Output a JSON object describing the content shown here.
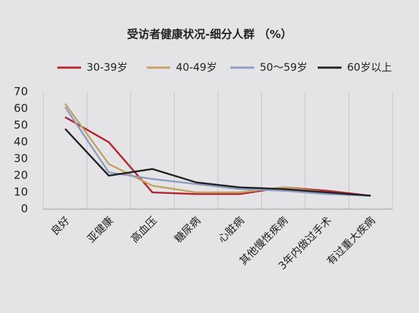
{
  "chart_data": {
    "type": "line",
    "title": "受访者健康状况-细分人群 （%）",
    "categories": [
      "良好",
      "亚健康",
      "高血压",
      "糖尿病",
      "心脏病",
      "其他慢性疾病",
      "3年内做过手术",
      "有过重大疾病"
    ],
    "series": [
      {
        "name": "30-39岁",
        "color": "#b3242f",
        "values": [
          55,
          40,
          10,
          9,
          9,
          13,
          11,
          8
        ]
      },
      {
        "name": "40-49岁",
        "color": "#c4a263",
        "values": [
          63,
          27,
          14,
          10,
          10,
          13,
          10,
          8
        ]
      },
      {
        "name": "50～59岁",
        "color": "#8e9cc2",
        "values": [
          61,
          22,
          18,
          15,
          12,
          11,
          9,
          8
        ]
      },
      {
        "name": "60岁以上",
        "color": "#222222",
        "values": [
          48,
          20,
          24,
          16,
          13,
          12,
          10,
          8
        ]
      }
    ],
    "ylim": [
      0,
      70
    ],
    "yticks": [
      0,
      10,
      20,
      30,
      40,
      50,
      60,
      70
    ]
  }
}
